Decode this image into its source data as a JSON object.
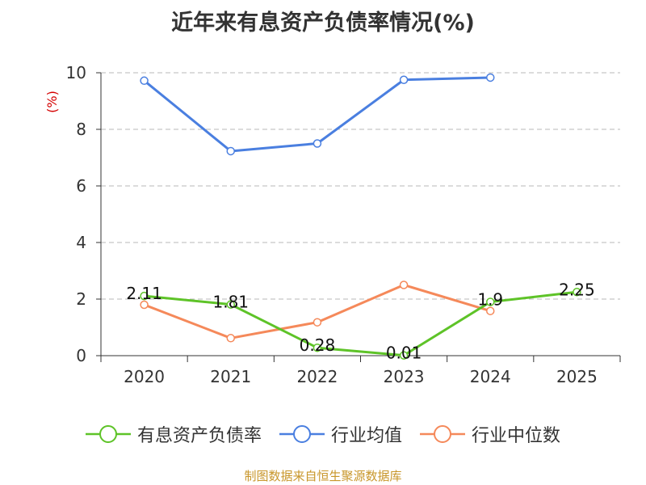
{
  "title": "近年来有息资产负债率情况(%)",
  "source": "制图数据来自恒生聚源数据库",
  "chart_data": {
    "type": "line",
    "title": "近年来有息资产负债率情况(%)",
    "ylabel": "(%)",
    "xlabel": "",
    "categories": [
      "2020",
      "2021",
      "2022",
      "2023",
      "2024",
      "2025"
    ],
    "ylim": [
      0,
      10
    ],
    "yticks": [
      0,
      2,
      4,
      6,
      8,
      10
    ],
    "grid": true,
    "legend_position": "bottom",
    "series": [
      {
        "name": "有息资产负债率",
        "color": "#5ec328",
        "values": [
          2.11,
          1.81,
          0.28,
          0.01,
          1.9,
          2.25
        ],
        "labels": [
          "2.11",
          "1.81",
          "0.28",
          "0.01",
          "1.9",
          "2.25"
        ]
      },
      {
        "name": "行业均值",
        "color": "#4a7fe0",
        "values": [
          9.72,
          7.23,
          7.5,
          9.75,
          9.83,
          null
        ]
      },
      {
        "name": "行业中位数",
        "color": "#f5895a",
        "values": [
          1.8,
          0.62,
          1.18,
          2.5,
          1.58,
          null
        ]
      }
    ]
  }
}
